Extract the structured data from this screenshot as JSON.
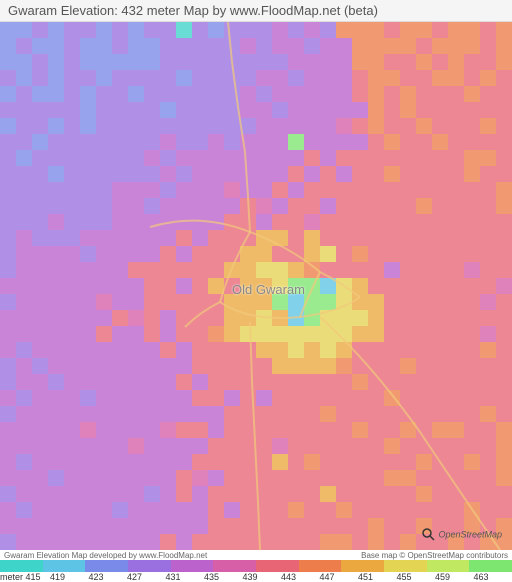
{
  "title": "Gwaram Elevation: 432 meter Map by www.FloodMap.net (beta)",
  "place_label": "Old Gwaram",
  "osm_badge": "OpenStreetMap",
  "attribution_left": "Gwaram Elevation Map developed by www.FloodMap.net",
  "attribution_right": "Base map © OpenStreetMap contributors",
  "legend": {
    "unit_label": "meter 415",
    "steps": [
      {
        "value": "419",
        "color": "#3fd4c9"
      },
      {
        "value": "423",
        "color": "#5ec4e6"
      },
      {
        "value": "427",
        "color": "#7a8ae8"
      },
      {
        "value": "431",
        "color": "#9a6fe0"
      },
      {
        "value": "435",
        "color": "#bb62cc"
      },
      {
        "value": "439",
        "color": "#d65fa8"
      },
      {
        "value": "443",
        "color": "#e76575"
      },
      {
        "value": "447",
        "color": "#ed7d4a"
      },
      {
        "value": "451",
        "color": "#eba83e"
      },
      {
        "value": "455",
        "color": "#e4d453"
      },
      {
        "value": "459",
        "color": "#c0e861"
      },
      {
        "value": "463",
        "color": "#7de670"
      }
    ]
  },
  "heatmap": {
    "type": "heatmap",
    "cols": 32,
    "rows": 33,
    "palette": {
      "cyan": "#3fd4c9",
      "ltblue": "#5ec4e6",
      "blue": "#7a8ae8",
      "purple": "#9a6fe0",
      "magenta": "#bb62cc",
      "pink": "#d65fa8",
      "redpink": "#e76575",
      "orange": "#ed7d4a",
      "amber": "#eba83e",
      "yellow": "#e4d453",
      "lime": "#c0e861",
      "green": "#7de670"
    },
    "grid": [
      "BBPBPPBPBPPCPBPPPMPMPOOOROOROORO",
      "BPBBPBBPBBPPPPPMPMMPMMOOOOROOORO",
      "BBPBPBBBBBPPPPPPPPMMMMOORRORORRO",
      "PBPBPPBPPPPBPPPPMMPMMMROORROOROR",
      "BPBBPBPPBPPPPPPMPMMMMMRORORRRORR",
      "PPPPPBPPPPBPPPPMMPMMMMMORORRRRRR",
      "BPPBPBPPPPPPPPPPMMMMMKRORRORRROR",
      "PPBPPPPPPPMPPMPMMMGMMMMRORRORRRR",
      "PBPPPPPPPMPMMMMMMMMRMRRRRRRRROOR",
      "PPPBPPPPPPMPMMMMMMRMRMRRORRRRORR",
      "PPPPPPPMMMPMMMKMMRMRRRRRRRRRRRRO",
      "PPPPPPPMMPMMMMMRKMRRMRRRRRORRRRO",
      "PPPMPPPMMMMMMMRRMRRKRRRRRRRRRRRR",
      "PMPPPMMMMMMRMRRRAARARRRRRRRRRRRR",
      "PMMMMPMMMMRMRRRAARRAYRORRRRRRRRR",
      "PMMMMMMMRRRRRRAAYYAORRRRMRRRRKRR",
      "MMMMMMMMMRRMRARAAYGGLYARRRRRRRRK",
      "PMMMMMKMMRRRRRAAAGLGGYAARRRRRRKR",
      "MMMMMMMRKRMRRRAAYALGYYYARRRRRRRR",
      "MMMMMMRMMRMRROAYYYYYYYAARRRRRRKR",
      "MPMMMMMMMMRMRRRRAAYAYARRRRRRRROR",
      "PMPMMMMMMMMMRRRRRAAAAORRRORRRRRR",
      "PMMPMMMMMMMRMRRRRRRRRRORRRRRRRRR",
      "MPMMMPMMMMMMRRMRMRRRRRRRORRRRRRR",
      "PMMMMMMMMMMMMMRRRRRRORRRRRRRRROR",
      "MMMMMKMMMMKRRMRRRRRRRRORROROORRO",
      "MMMMMMMMKMMMMRRRRKRRRRRRORRRRRRO",
      "MPMMMMMMMMMMRRRRRARORRRRRRORRORO",
      "MMMPMMMMMMMRKMRRRRRRRRRROORRRRRO",
      "PMMMMMMMMPMRMRRRRRRRARRRRRORRRRR",
      "MPMMMMMPMMMMMRMRRRORRORRRRRRRORR",
      "MMMMMMMMMMMMMRRRRRRRRRRORRORRORO",
      "PMMMMMMMMMRMRRRRRRRROORORORROROO"
    ],
    "code_map": {
      "C": "cyan",
      "L": "ltblue",
      "B": "blue",
      "P": "purple",
      "M": "magenta",
      "K": "pink",
      "R": "redpink",
      "O": "orange",
      "A": "amber",
      "Y": "yellow",
      "I": "lime",
      "G": "green"
    }
  },
  "roads": {
    "stroke": "#f2c97a",
    "stroke_width": 2,
    "paths": [
      "M 228 0 L 232 40 L 238 85 L 245 130 L 248 175 L 250 210",
      "M 150 205 Q 200 190 250 210 Q 290 225 320 250",
      "M 250 210 Q 230 245 220 280",
      "M 220 280 Q 250 300 300 295 Q 340 290 360 275",
      "M 320 250 Q 340 260 360 275",
      "M 300 295 Q 310 270 320 250",
      "M 250 300 L 252 360 L 255 420 L 258 480 L 260 528",
      "M 320 295 Q 370 340 420 410 Q 460 470 500 528",
      "M 220 280 Q 200 290 185 305"
    ]
  },
  "magnifier_color": "#333"
}
